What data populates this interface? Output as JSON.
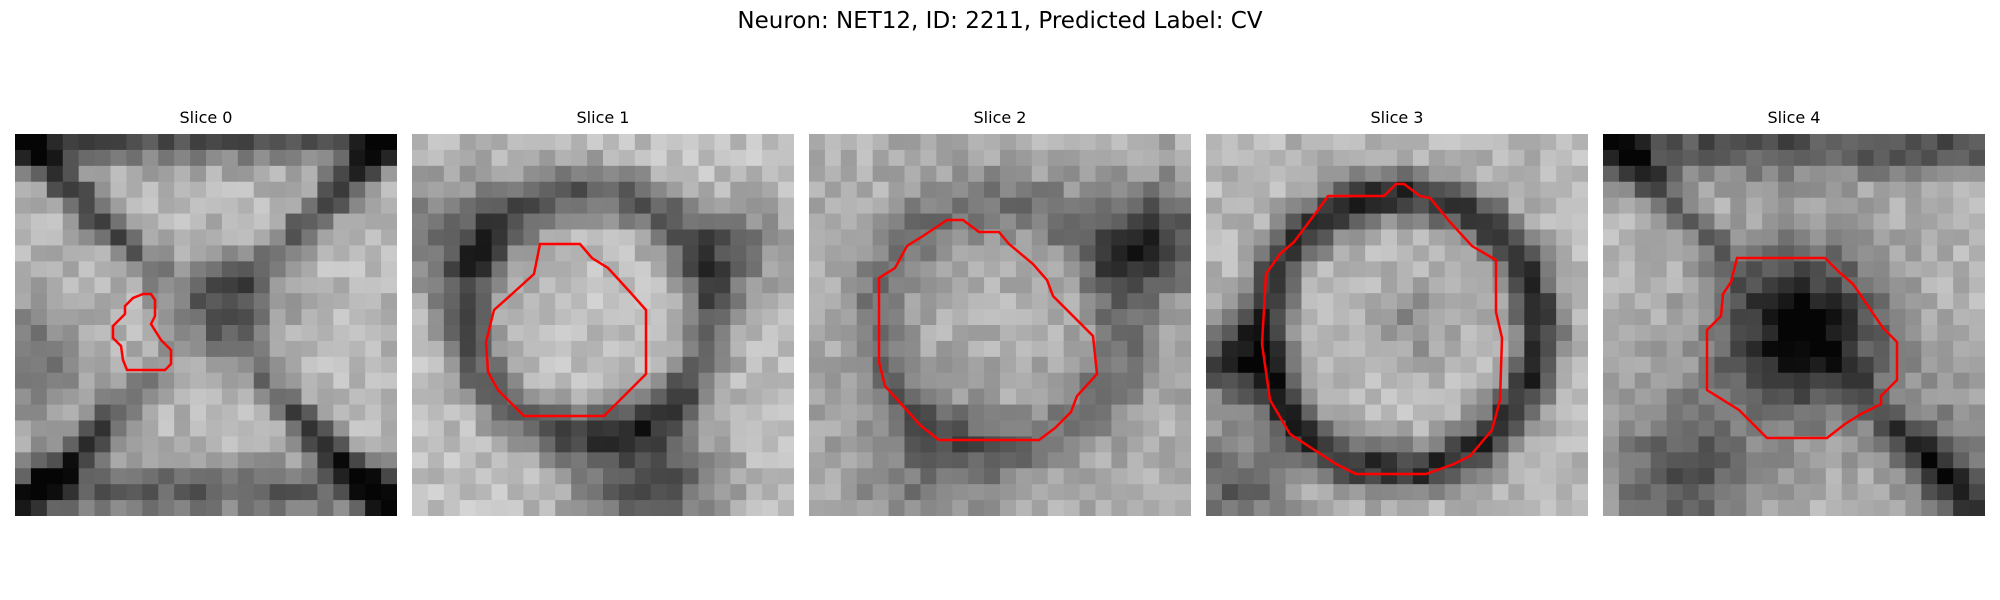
{
  "figure": {
    "title": "Neuron: NET12, ID: 2211, Predicted Label: CV"
  },
  "panels": [
    {
      "title": "Slice 0"
    },
    {
      "title": "Slice 1"
    },
    {
      "title": "Slice 2"
    },
    {
      "title": "Slice 3"
    },
    {
      "title": "Slice 4"
    }
  ],
  "colors": {
    "contour": "#ff0000",
    "background": "#ffffff"
  }
}
